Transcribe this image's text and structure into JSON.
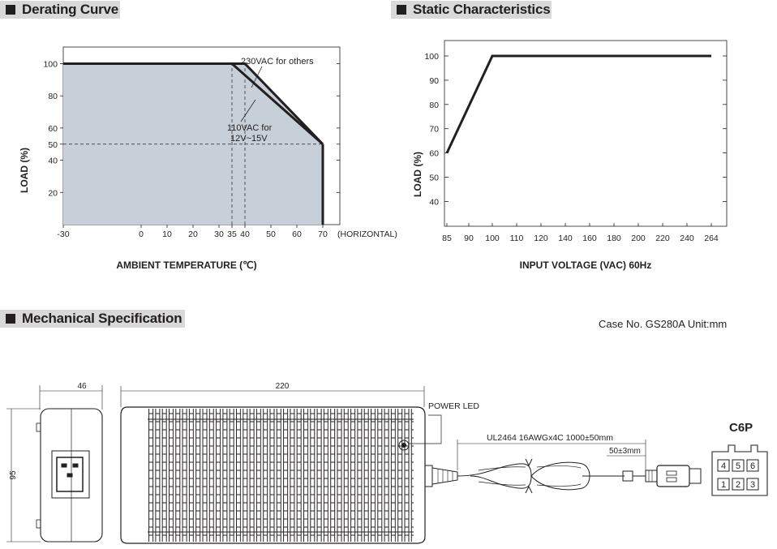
{
  "sections": {
    "derating": "Derating Curve",
    "static": "Static Characteristics",
    "mechanical": "Mechanical Specification"
  },
  "case_info": "Case No. GS280A    Unit:mm",
  "chart_data": [
    {
      "type": "area",
      "title": "Derating Curve",
      "xlabel": "AMBIENT TEMPERATURE (℃)",
      "ylabel": "LOAD (%)",
      "x_axis_note": "(HORIZONTAL)",
      "xticks": [
        -30,
        0,
        10,
        20,
        30,
        35,
        40,
        50,
        60,
        70
      ],
      "yticks": [
        20,
        40,
        50,
        60,
        80,
        100
      ],
      "xlim": [
        -30,
        70
      ],
      "ylim": [
        0,
        100
      ],
      "series": [
        {
          "name": "230VAC for others",
          "x": [
            -30,
            40,
            70
          ],
          "y": [
            100,
            100,
            50
          ]
        },
        {
          "name": "110VAC for 12V~15V",
          "x": [
            -30,
            35,
            70
          ],
          "y": [
            100,
            100,
            50
          ]
        }
      ],
      "annotations": [
        "230VAC for others",
        "110VAC for",
        "12V~15V"
      ],
      "reference_lines": {
        "x": [
          35,
          40
        ],
        "y": [
          50
        ]
      }
    },
    {
      "type": "line",
      "title": "Static Characteristics",
      "xlabel": "INPUT VOLTAGE (VAC) 60Hz",
      "ylabel": "LOAD (%)",
      "xticks": [
        85,
        90,
        100,
        110,
        120,
        140,
        160,
        180,
        200,
        220,
        240,
        264
      ],
      "yticks": [
        40,
        50,
        60,
        70,
        80,
        90,
        100
      ],
      "ylim": [
        40,
        100
      ],
      "series": [
        {
          "x": [
            85,
            100,
            264
          ],
          "y": [
            60,
            100,
            100
          ]
        }
      ]
    }
  ],
  "mechanical": {
    "dim_width": "46",
    "dim_length": "220",
    "dim_height": "95",
    "power_led": "POWER LED",
    "cable": "UL2464 16AWGx4C 1000±50mm",
    "cable_end": "50±3mm",
    "connector": "C6P",
    "pins_top": [
      "4",
      "5",
      "6"
    ],
    "pins_bottom": [
      "1",
      "2",
      "3"
    ]
  }
}
